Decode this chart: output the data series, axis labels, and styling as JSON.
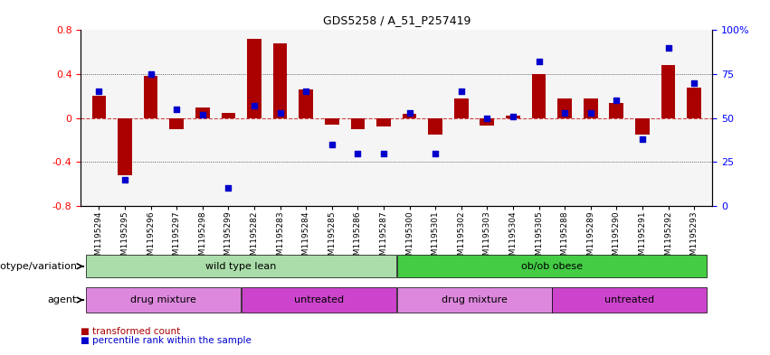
{
  "title": "GDS5258 / A_51_P257419",
  "samples": [
    "GSM1195294",
    "GSM1195295",
    "GSM1195296",
    "GSM1195297",
    "GSM1195298",
    "GSM1195299",
    "GSM1195282",
    "GSM1195283",
    "GSM1195284",
    "GSM1195285",
    "GSM1195286",
    "GSM1195287",
    "GSM1195300",
    "GSM1195301",
    "GSM1195302",
    "GSM1195303",
    "GSM1195304",
    "GSM1195305",
    "GSM1195288",
    "GSM1195289",
    "GSM1195290",
    "GSM1195291",
    "GSM1195292",
    "GSM1195293"
  ],
  "bar_values": [
    0.2,
    -0.52,
    0.38,
    -0.1,
    0.1,
    0.05,
    0.72,
    0.68,
    0.26,
    -0.06,
    -0.1,
    -0.08,
    0.04,
    -0.15,
    0.18,
    -0.07,
    0.02,
    0.4,
    0.18,
    0.18,
    0.14,
    -0.15,
    0.48,
    0.28
  ],
  "dot_values_pct": [
    65,
    15,
    75,
    55,
    52,
    10,
    57,
    53,
    65,
    35,
    30,
    30,
    53,
    30,
    65,
    50,
    51,
    82,
    53,
    53,
    60,
    38,
    90,
    70
  ],
  "ylim": [
    -0.8,
    0.8
  ],
  "y2lim": [
    0,
    100
  ],
  "yticks": [
    -0.8,
    -0.4,
    0.0,
    0.4,
    0.8
  ],
  "ytick_labels": [
    "-0.8",
    "-0.4",
    "0",
    "0.4",
    "0.8"
  ],
  "y2ticks": [
    0,
    25,
    50,
    75,
    100
  ],
  "y2ticklabels": [
    "0",
    "25",
    "50",
    "75",
    "100%"
  ],
  "bar_color": "#aa0000",
  "dot_color": "#0000cc",
  "zero_line_color": "#cc4444",
  "hline_color": "#333333",
  "genotype_groups": [
    {
      "label": "wild type lean",
      "start": 0,
      "end": 11,
      "color": "#aaddaa"
    },
    {
      "label": "ob/ob obese",
      "start": 12,
      "end": 23,
      "color": "#44cc44"
    }
  ],
  "agent_groups": [
    {
      "label": "drug mixture",
      "start": 0,
      "end": 5,
      "color": "#dd88dd"
    },
    {
      "label": "untreated",
      "start": 6,
      "end": 11,
      "color": "#cc44cc"
    },
    {
      "label": "drug mixture",
      "start": 12,
      "end": 17,
      "color": "#dd88dd"
    },
    {
      "label": "untreated",
      "start": 18,
      "end": 23,
      "color": "#cc44cc"
    }
  ],
  "legend_items": [
    {
      "label": "transformed count",
      "color": "#aa0000"
    },
    {
      "label": "percentile rank within the sample",
      "color": "#0000cc"
    }
  ],
  "genotype_label": "genotype/variation",
  "agent_label": "agent"
}
